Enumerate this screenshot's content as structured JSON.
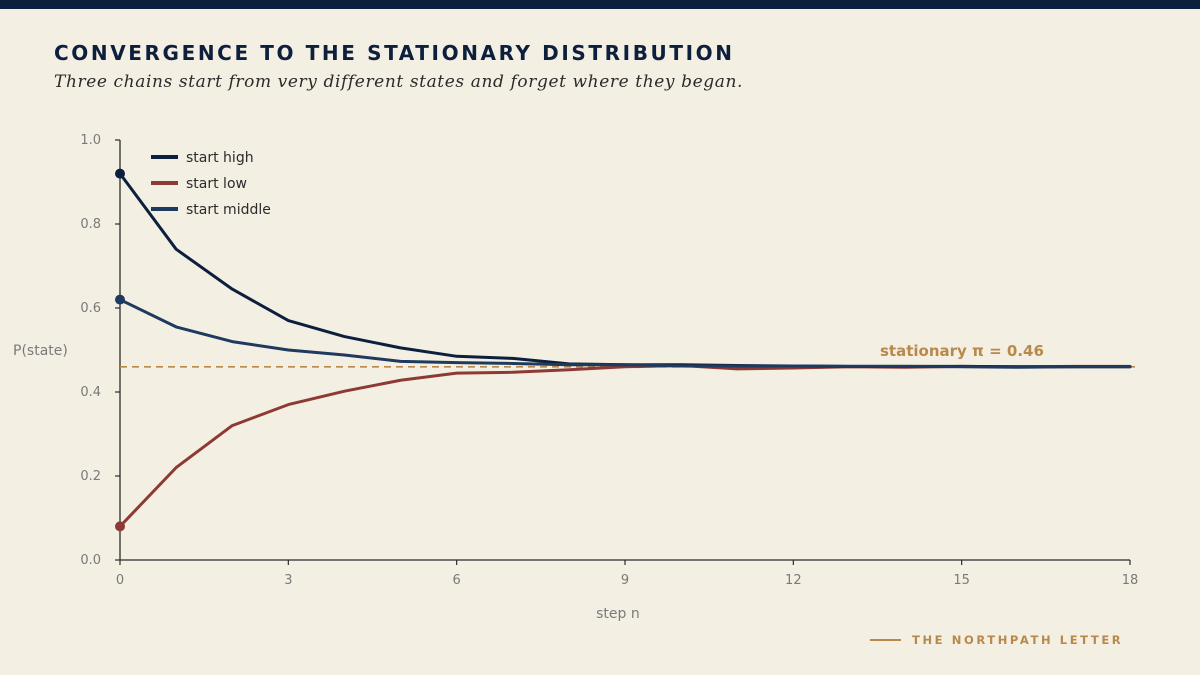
{
  "header": {
    "title": "CONVERGENCE TO THE STATIONARY DISTRIBUTION",
    "subtitle": "Three chains start from very different states and forget where they began."
  },
  "brand": {
    "name": "THE NORTHPATH LETTER"
  },
  "colors": {
    "background": "#f4efe3",
    "navy": "#0c1f3d",
    "accent": "#b8894a",
    "axis": "#2b2b2b",
    "tick_text": "#7a7a7a"
  },
  "chart_data": {
    "type": "line",
    "xlabel": "step n",
    "ylabel": "P(state)",
    "xlim": [
      0,
      18
    ],
    "ylim": [
      0,
      1
    ],
    "xticks": [
      0,
      3,
      6,
      9,
      12,
      15,
      18
    ],
    "yticks": [
      0.0,
      0.2,
      0.4,
      0.6,
      0.8,
      1.0
    ],
    "ytick_labels": [
      "0.0",
      "0.2",
      "0.4",
      "0.6",
      "0.8",
      "1.0"
    ],
    "grid": false,
    "legend_position": "top-left",
    "x": [
      0,
      1,
      2,
      3,
      4,
      5,
      6,
      7,
      8,
      9,
      10,
      11,
      12,
      13,
      14,
      15,
      16,
      17,
      18
    ],
    "series": [
      {
        "name": "start high",
        "color": "#0c1f3d",
        "values": [
          0.92,
          0.74,
          0.645,
          0.57,
          0.532,
          0.505,
          0.485,
          0.48,
          0.467,
          0.465,
          0.465,
          0.463,
          0.462,
          0.461,
          0.461,
          0.461,
          0.46,
          0.46,
          0.46
        ]
      },
      {
        "name": "start low",
        "color": "#8e3a34",
        "values": [
          0.08,
          0.22,
          0.32,
          0.37,
          0.402,
          0.428,
          0.445,
          0.447,
          0.453,
          0.46,
          0.463,
          0.455,
          0.457,
          0.46,
          0.459,
          0.461,
          0.46,
          0.461,
          0.461
        ]
      },
      {
        "name": "start middle",
        "color": "#1e3a5f",
        "values": [
          0.62,
          0.555,
          0.52,
          0.5,
          0.488,
          0.473,
          0.47,
          0.468,
          0.465,
          0.465,
          0.462,
          0.462,
          0.462,
          0.461,
          0.461,
          0.46,
          0.459,
          0.46,
          0.46
        ]
      }
    ],
    "reference_line": {
      "value": 0.46,
      "label": "stationary  π = 0.46",
      "color": "#b8894a"
    }
  }
}
